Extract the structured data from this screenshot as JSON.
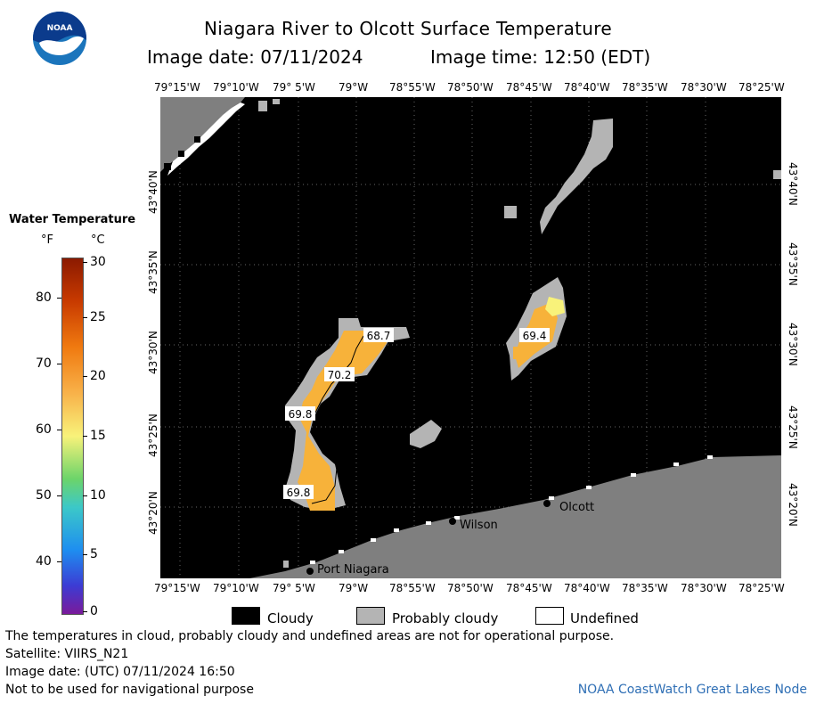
{
  "header": {
    "title": "Niagara River to Olcott Surface Temperature",
    "image_date_label": "Image date: 07/11/2024",
    "image_time_label": "Image time: 12:50 (EDT)"
  },
  "logo": {
    "text": "NOAA",
    "colors": {
      "outer": "#1b75bc",
      "inner": "#0b3b8c",
      "gull": "#ffffff"
    }
  },
  "map": {
    "lon_ticks": [
      "79°15'W",
      "79°10'W",
      "79° 5'W",
      "79°W",
      "78°55'W",
      "78°50'W",
      "78°45'W",
      "78°40'W",
      "78°35'W",
      "78°30'W",
      "78°25'W"
    ],
    "lat_ticks": [
      "43°40'N",
      "43°35'N",
      "43°30'N",
      "43°25'N",
      "43°20'N"
    ],
    "places": [
      {
        "name": "Olcott",
        "id": "olcott"
      },
      {
        "name": "Wilson",
        "id": "wilson"
      },
      {
        "name": "Port Niagara",
        "id": "port-niagara"
      }
    ],
    "temperature_labels": [
      "68.7",
      "70.2",
      "69.8",
      "69.8",
      "69.4"
    ],
    "colors": {
      "cloudy": "#000000",
      "land": "#7f7f7f",
      "probably_cloudy": "#b4b4b4",
      "undefined": "#ffffff",
      "water_warm": "#f7b23a",
      "water_yellow": "#f8f27a"
    }
  },
  "legend": {
    "title": "Water Temperature",
    "unit_f": "°F",
    "unit_c": "°C",
    "f_ticks": [
      "80",
      "70",
      "60",
      "50",
      "40"
    ],
    "c_ticks": [
      "30",
      "25",
      "20",
      "15",
      "10",
      "5",
      "0"
    ]
  },
  "key": {
    "cloudy": "Cloudy",
    "probably_cloudy": "Probably cloudy",
    "undefined": "Undefined"
  },
  "footer": {
    "note": "The temperatures in cloud, probably cloudy and undefined areas are not for operational purpose.",
    "satellite": "Satellite: VIIRS_N21",
    "utc_date": "Image date: (UTC) 07/11/2024  16:50",
    "nav_warning": "Not to be used for navigational purpose",
    "credit": "NOAA CoastWatch Great Lakes Node"
  }
}
